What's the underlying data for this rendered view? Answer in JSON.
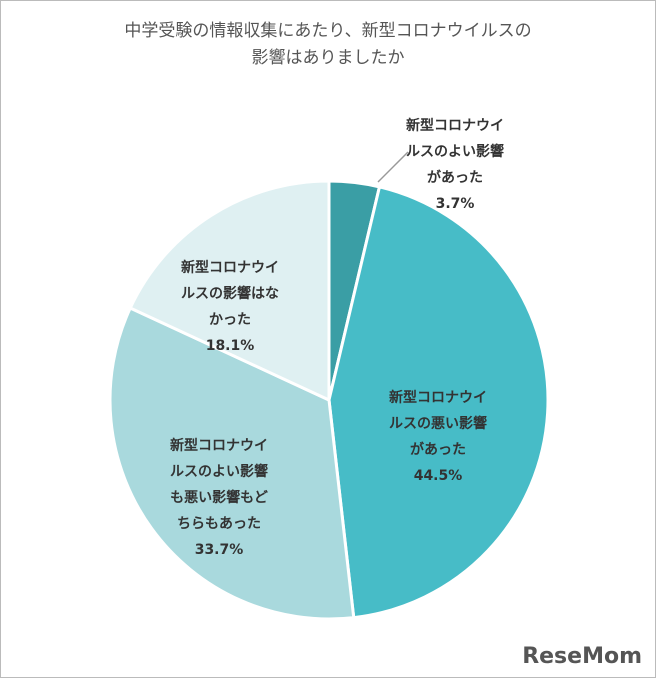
{
  "chart_data": {
    "type": "pie",
    "title": [
      "中学受験の情報収集にあたり、新型コロナウイルスの",
      "影響はありましたか"
    ],
    "categories": [
      [
        "新型コロナウイ",
        "ルスのよい影響",
        "があった"
      ],
      [
        "新型コロナウイ",
        "ルスの悪い影響",
        "があった"
      ],
      [
        "新型コロナウイ",
        "ルスのよい影響",
        "も悪い影響もど",
        "ちらもあった"
      ],
      [
        "新型コロナウイ",
        "ルスの影響はな",
        "かった"
      ]
    ],
    "values": [
      3.7,
      44.5,
      33.7,
      18.1
    ],
    "value_labels": [
      "3.7%",
      "44.5%",
      "33.7%",
      "18.1%"
    ],
    "colors": [
      "#3a9ea5",
      "#47bcc7",
      "#a9d9dd",
      "#dff0f2"
    ],
    "watermark": "ReseMom"
  }
}
